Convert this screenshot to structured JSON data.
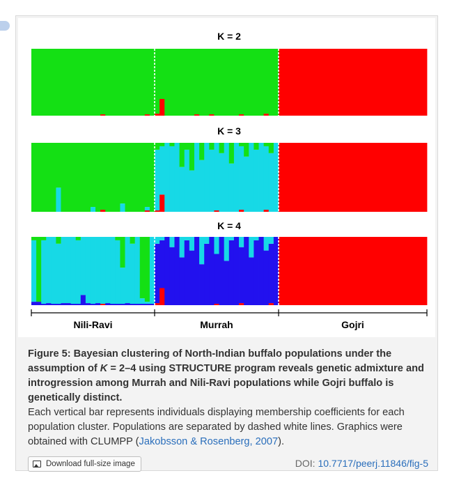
{
  "chart_data": {
    "type": "stacked-bar",
    "populations": [
      "Nili-Ravi",
      "Murrah",
      "Gojri"
    ],
    "colors": {
      "green": "#14e014",
      "cyan": "#17d9e6",
      "red": "#ff0000",
      "blue": "#2211ee"
    },
    "panels": [
      {
        "title": "K = 2",
        "ylim": [
          0,
          1
        ],
        "series": [
          "green",
          "red"
        ],
        "individuals_per_population": [
          25,
          25,
          30
        ],
        "membership": {
          "Nili-Ravi": [
            [
              1.0,
              0.0
            ],
            [
              1.0,
              0.0
            ],
            [
              1.0,
              0.0
            ],
            [
              1.0,
              0.0
            ],
            [
              1.0,
              0.0
            ],
            [
              1.0,
              0.0
            ],
            [
              1.0,
              0.0
            ],
            [
              1.0,
              0.0
            ],
            [
              1.0,
              0.0
            ],
            [
              1.0,
              0.0
            ],
            [
              1.0,
              0.0
            ],
            [
              1.0,
              0.0
            ],
            [
              1.0,
              0.0
            ],
            [
              1.0,
              0.0
            ],
            [
              0.98,
              0.02
            ],
            [
              1.0,
              0.0
            ],
            [
              1.0,
              0.0
            ],
            [
              1.0,
              0.0
            ],
            [
              1.0,
              0.0
            ],
            [
              1.0,
              0.0
            ],
            [
              1.0,
              0.0
            ],
            [
              1.0,
              0.0
            ],
            [
              1.0,
              0.0
            ],
            [
              0.98,
              0.02
            ],
            [
              1.0,
              0.0
            ]
          ],
          "Murrah": [
            [
              0.97,
              0.03
            ],
            [
              0.75,
              0.25
            ],
            [
              1.0,
              0.0
            ],
            [
              1.0,
              0.0
            ],
            [
              1.0,
              0.0
            ],
            [
              1.0,
              0.0
            ],
            [
              1.0,
              0.0
            ],
            [
              1.0,
              0.0
            ],
            [
              0.98,
              0.02
            ],
            [
              1.0,
              0.0
            ],
            [
              1.0,
              0.0
            ],
            [
              0.98,
              0.02
            ],
            [
              1.0,
              0.0
            ],
            [
              1.0,
              0.0
            ],
            [
              1.0,
              0.0
            ],
            [
              1.0,
              0.0
            ],
            [
              1.0,
              0.0
            ],
            [
              0.98,
              0.02
            ],
            [
              1.0,
              0.0
            ],
            [
              1.0,
              0.0
            ],
            [
              1.0,
              0.0
            ],
            [
              1.0,
              0.0
            ],
            [
              0.97,
              0.03
            ],
            [
              1.0,
              0.0
            ],
            [
              1.0,
              0.0
            ]
          ],
          "Gojri": "all individuals 1.0 red"
        }
      },
      {
        "title": "K = 3",
        "ylim": [
          0,
          1
        ],
        "series": [
          "green",
          "cyan",
          "red"
        ],
        "individuals_per_population": [
          25,
          25,
          30
        ],
        "membership": {
          "Nili-Ravi": [
            [
              1.0,
              0.0,
              0.0
            ],
            [
              1.0,
              0.0,
              0.0
            ],
            [
              1.0,
              0.0,
              0.0
            ],
            [
              1.0,
              0.0,
              0.0
            ],
            [
              1.0,
              0.0,
              0.0
            ],
            [
              0.65,
              0.35,
              0.0
            ],
            [
              1.0,
              0.0,
              0.0
            ],
            [
              1.0,
              0.0,
              0.0
            ],
            [
              1.0,
              0.0,
              0.0
            ],
            [
              1.0,
              0.0,
              0.0
            ],
            [
              1.0,
              0.0,
              0.0
            ],
            [
              1.0,
              0.0,
              0.0
            ],
            [
              0.93,
              0.07,
              0.0
            ],
            [
              1.0,
              0.0,
              0.0
            ],
            [
              0.97,
              0.0,
              0.03
            ],
            [
              1.0,
              0.0,
              0.0
            ],
            [
              1.0,
              0.0,
              0.0
            ],
            [
              1.0,
              0.0,
              0.0
            ],
            [
              0.88,
              0.12,
              0.0
            ],
            [
              1.0,
              0.0,
              0.0
            ],
            [
              1.0,
              0.0,
              0.0
            ],
            [
              1.0,
              0.0,
              0.0
            ],
            [
              1.0,
              0.0,
              0.0
            ],
            [
              0.93,
              0.05,
              0.02
            ],
            [
              1.0,
              0.0,
              0.0
            ]
          ],
          "Murrah": [
            [
              0.1,
              0.88,
              0.02
            ],
            [
              0.05,
              0.7,
              0.25
            ],
            [
              0.0,
              1.0,
              0.0
            ],
            [
              0.05,
              0.95,
              0.0
            ],
            [
              0.0,
              1.0,
              0.0
            ],
            [
              0.35,
              0.65,
              0.0
            ],
            [
              0.1,
              0.9,
              0.0
            ],
            [
              0.4,
              0.6,
              0.0
            ],
            [
              0.0,
              1.0,
              0.0
            ],
            [
              0.25,
              0.75,
              0.0
            ],
            [
              0.0,
              1.0,
              0.0
            ],
            [
              0.1,
              0.9,
              0.0
            ],
            [
              0.0,
              0.98,
              0.02
            ],
            [
              0.15,
              0.85,
              0.0
            ],
            [
              0.0,
              1.0,
              0.0
            ],
            [
              0.3,
              0.7,
              0.0
            ],
            [
              0.0,
              1.0,
              0.0
            ],
            [
              0.05,
              0.92,
              0.03
            ],
            [
              0.2,
              0.8,
              0.0
            ],
            [
              0.0,
              1.0,
              0.0
            ],
            [
              0.1,
              0.9,
              0.0
            ],
            [
              0.0,
              1.0,
              0.0
            ],
            [
              0.05,
              0.92,
              0.03
            ],
            [
              0.15,
              0.85,
              0.0
            ],
            [
              0.0,
              1.0,
              0.0
            ]
          ],
          "Gojri": "all individuals 1.0 red"
        }
      },
      {
        "title": "K = 4",
        "ylim": [
          0,
          1
        ],
        "series": [
          "green",
          "cyan",
          "blue",
          "red"
        ],
        "individuals_per_population": [
          25,
          25,
          30
        ],
        "membership": {
          "Nili-Ravi": [
            [
              0.05,
              0.9,
              0.05,
              0.0
            ],
            [
              0.95,
              0.0,
              0.05,
              0.0
            ],
            [
              0.05,
              0.93,
              0.02,
              0.0
            ],
            [
              0.0,
              0.97,
              0.03,
              0.0
            ],
            [
              0.0,
              0.98,
              0.02,
              0.0
            ],
            [
              0.1,
              0.88,
              0.02,
              0.0
            ],
            [
              0.0,
              0.97,
              0.03,
              0.0
            ],
            [
              0.0,
              0.97,
              0.03,
              0.0
            ],
            [
              0.0,
              0.98,
              0.02,
              0.0
            ],
            [
              0.05,
              0.93,
              0.02,
              0.0
            ],
            [
              0.0,
              0.85,
              0.15,
              0.0
            ],
            [
              0.0,
              0.97,
              0.03,
              0.0
            ],
            [
              0.0,
              0.98,
              0.02,
              0.0
            ],
            [
              0.0,
              0.97,
              0.03,
              0.0
            ],
            [
              0.0,
              0.98,
              0.0,
              0.02
            ],
            [
              0.0,
              0.97,
              0.03,
              0.0
            ],
            [
              0.0,
              0.98,
              0.02,
              0.0
            ],
            [
              0.05,
              0.93,
              0.02,
              0.0
            ],
            [
              0.45,
              0.53,
              0.02,
              0.0
            ],
            [
              0.0,
              0.97,
              0.03,
              0.0
            ],
            [
              0.1,
              0.88,
              0.02,
              0.0
            ],
            [
              0.0,
              0.98,
              0.02,
              0.0
            ],
            [
              0.9,
              0.08,
              0.02,
              0.0
            ],
            [
              0.95,
              0.03,
              0.02,
              0.0
            ],
            [
              0.0,
              0.98,
              0.02,
              0.0
            ]
          ],
          "Murrah": [
            [
              0.0,
              0.1,
              0.87,
              0.03
            ],
            [
              0.0,
              0.05,
              0.7,
              0.25
            ],
            [
              0.0,
              0.0,
              1.0,
              0.0
            ],
            [
              0.0,
              0.15,
              0.85,
              0.0
            ],
            [
              0.0,
              0.0,
              1.0,
              0.0
            ],
            [
              0.0,
              0.3,
              0.7,
              0.0
            ],
            [
              0.0,
              0.05,
              0.95,
              0.0
            ],
            [
              0.0,
              0.2,
              0.8,
              0.0
            ],
            [
              0.0,
              0.0,
              1.0,
              0.0
            ],
            [
              0.0,
              0.4,
              0.6,
              0.0
            ],
            [
              0.0,
              0.1,
              0.9,
              0.0
            ],
            [
              0.0,
              0.0,
              1.0,
              0.0
            ],
            [
              0.0,
              0.25,
              0.73,
              0.02
            ],
            [
              0.0,
              0.0,
              1.0,
              0.0
            ],
            [
              0.0,
              0.35,
              0.65,
              0.0
            ],
            [
              0.0,
              0.05,
              0.95,
              0.0
            ],
            [
              0.0,
              0.0,
              1.0,
              0.0
            ],
            [
              0.0,
              0.15,
              0.82,
              0.03
            ],
            [
              0.0,
              0.0,
              1.0,
              0.0
            ],
            [
              0.0,
              0.3,
              0.7,
              0.0
            ],
            [
              0.0,
              0.05,
              0.95,
              0.0
            ],
            [
              0.0,
              0.0,
              1.0,
              0.0
            ],
            [
              0.0,
              0.2,
              0.8,
              0.0
            ],
            [
              0.0,
              0.1,
              0.87,
              0.03
            ],
            [
              0.0,
              0.0,
              1.0,
              0.0
            ]
          ],
          "Gojri": "all individuals 1.0 red"
        }
      }
    ],
    "x_tick_labels": [
      "Nili-Ravi",
      "Murrah",
      "Gojri"
    ],
    "separators": "dashed white"
  },
  "caption": {
    "title_part1": "Figure 5: Bayesian clustering of North-Indian buffalo populations under the assumption of ",
    "title_k": "K",
    "title_part2": " = 2–4 using STRUCTURE program reveals genetic admixture and introgression among Murrah and Nili-Ravi populations while Gojri buffalo is genetically distinct.",
    "body_part1": "Each vertical bar represents individuals displaying membership coefficients for each population cluster. Populations are separated by dashed white lines. Graphics were obtained with CLUMPP (",
    "body_link": "Jakobsson & Rosenberg, 2007",
    "body_part2": ")."
  },
  "footer": {
    "download_label": "Download full-size image",
    "download_icon": "image-icon",
    "doi_label": "DOI: ",
    "doi_value": "10.7717/peerj.11846/fig-5"
  }
}
